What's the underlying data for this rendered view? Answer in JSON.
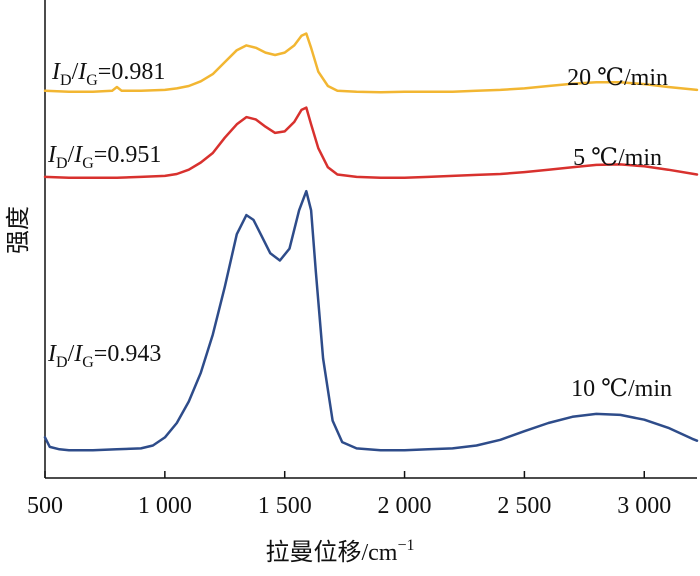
{
  "chart_data": {
    "type": "line",
    "xlabel": "拉曼位移/cm",
    "xlabel_sup": "−1",
    "ylabel": "强度",
    "xlim": [
      500,
      3220
    ],
    "ylim": [
      0,
      1
    ],
    "grid": false,
    "x_ticks": [
      {
        "value": 500,
        "label": "500"
      },
      {
        "value": 1000,
        "label": "1 000"
      },
      {
        "value": 1500,
        "label": "1 500"
      },
      {
        "value": 2000,
        "label": "2 000"
      },
      {
        "value": 2500,
        "label": "2 500"
      },
      {
        "value": 3000,
        "label": "3 000"
      }
    ],
    "series": [
      {
        "name": "20 ℃/min",
        "color": "#f2b632",
        "ratio_label": {
          "i": "I",
          "d": "D",
          "slash": "/",
          "g": "G",
          "value": "=0.981"
        },
        "x": [
          500,
          600,
          700,
          780,
          800,
          820,
          900,
          1000,
          1050,
          1100,
          1150,
          1200,
          1250,
          1300,
          1340,
          1380,
          1420,
          1460,
          1500,
          1540,
          1570,
          1590,
          1610,
          1640,
          1680,
          1720,
          1800,
          1900,
          2000,
          2100,
          2200,
          2300,
          2400,
          2500,
          2600,
          2700,
          2800,
          2900,
          3000,
          3100,
          3220
        ],
        "y": [
          0.81,
          0.808,
          0.808,
          0.81,
          0.818,
          0.81,
          0.81,
          0.812,
          0.815,
          0.82,
          0.83,
          0.845,
          0.87,
          0.895,
          0.905,
          0.9,
          0.89,
          0.885,
          0.89,
          0.905,
          0.925,
          0.93,
          0.9,
          0.85,
          0.82,
          0.81,
          0.808,
          0.807,
          0.808,
          0.808,
          0.808,
          0.81,
          0.812,
          0.815,
          0.82,
          0.825,
          0.828,
          0.828,
          0.824,
          0.818,
          0.812
        ]
      },
      {
        "name": "5 ℃/min",
        "color": "#d8312e",
        "ratio_label": {
          "i": "I",
          "d": "D",
          "slash": "/",
          "g": "G",
          "value": "=0.951"
        },
        "x": [
          500,
          600,
          700,
          800,
          900,
          1000,
          1050,
          1100,
          1150,
          1200,
          1250,
          1300,
          1340,
          1380,
          1420,
          1460,
          1500,
          1540,
          1570,
          1590,
          1610,
          1640,
          1680,
          1720,
          1800,
          1900,
          2000,
          2100,
          2200,
          2300,
          2400,
          2500,
          2600,
          2700,
          2800,
          2900,
          3000,
          3100,
          3220
        ],
        "y": [
          0.63,
          0.628,
          0.628,
          0.628,
          0.63,
          0.632,
          0.636,
          0.645,
          0.66,
          0.68,
          0.712,
          0.74,
          0.755,
          0.75,
          0.735,
          0.722,
          0.725,
          0.745,
          0.77,
          0.775,
          0.74,
          0.69,
          0.65,
          0.635,
          0.63,
          0.628,
          0.628,
          0.63,
          0.632,
          0.634,
          0.636,
          0.64,
          0.645,
          0.65,
          0.655,
          0.656,
          0.652,
          0.645,
          0.635
        ]
      },
      {
        "name": "10 ℃/min",
        "color": "#2e4c8a",
        "ratio_label": {
          "i": "I",
          "d": "D",
          "slash": "/",
          "g": "G",
          "value": "=0.943"
        },
        "x": [
          500,
          520,
          560,
          600,
          700,
          800,
          900,
          950,
          1000,
          1050,
          1100,
          1150,
          1200,
          1250,
          1300,
          1340,
          1370,
          1400,
          1440,
          1480,
          1520,
          1560,
          1590,
          1610,
          1630,
          1660,
          1700,
          1740,
          1800,
          1900,
          2000,
          2100,
          2200,
          2300,
          2400,
          2500,
          2600,
          2700,
          2800,
          2900,
          3000,
          3100,
          3200,
          3220
        ],
        "y": [
          0.085,
          0.065,
          0.06,
          0.058,
          0.058,
          0.06,
          0.062,
          0.068,
          0.085,
          0.115,
          0.16,
          0.22,
          0.3,
          0.4,
          0.51,
          0.55,
          0.54,
          0.51,
          0.47,
          0.455,
          0.48,
          0.56,
          0.6,
          0.56,
          0.43,
          0.25,
          0.12,
          0.075,
          0.062,
          0.058,
          0.058,
          0.06,
          0.062,
          0.068,
          0.08,
          0.098,
          0.115,
          0.128,
          0.134,
          0.132,
          0.122,
          0.105,
          0.082,
          0.078
        ]
      }
    ]
  }
}
